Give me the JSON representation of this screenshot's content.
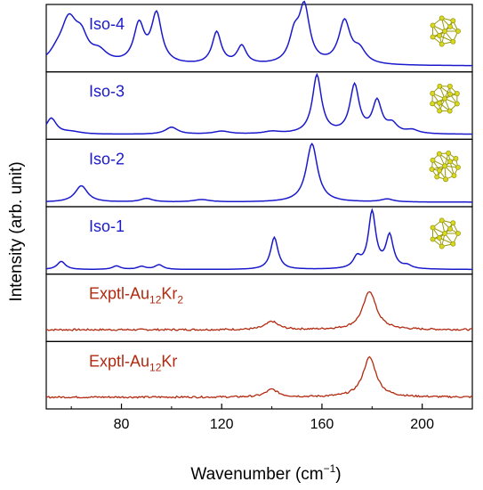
{
  "chart_data": {
    "type": "line",
    "xlabel": "Wavenumber (cm−1)",
    "ylabel": "Intensity (arb. unit)",
    "xlim": [
      50,
      220
    ],
    "xticks": [
      80,
      120,
      160,
      200
    ],
    "xtick_labels": [
      "80",
      "120",
      "160",
      "200"
    ],
    "grid": false,
    "legend": "none",
    "colors": {
      "calc": "#1a1acc",
      "exp": "#b22a10"
    },
    "panels": [
      {
        "label": "Iso-4",
        "kind": "calc",
        "thumb": "iso4-cluster-icon",
        "baseline": 0.04,
        "ymax": 1.0,
        "peaks": [
          [
            54,
            0.1,
            3
          ],
          [
            59,
            0.74,
            4
          ],
          [
            64,
            0.35,
            3
          ],
          [
            71,
            0.18,
            4
          ],
          [
            87,
            0.65,
            2.5
          ],
          [
            94,
            0.84,
            2.5
          ],
          [
            118,
            0.55,
            2.2
          ],
          [
            128,
            0.31,
            2.2
          ],
          [
            149,
            0.45,
            2.5
          ],
          [
            153,
            0.94,
            2.5
          ],
          [
            169,
            0.73,
            2.8
          ],
          [
            175,
            0.22,
            3
          ]
        ]
      },
      {
        "label": "Iso-3",
        "kind": "calc",
        "thumb": "iso3-cluster-icon",
        "baseline": 0.02,
        "ymax": 1.0,
        "peaks": [
          [
            52,
            0.27,
            2.5
          ],
          [
            60,
            0.04,
            5
          ],
          [
            100,
            0.12,
            3
          ],
          [
            120,
            0.05,
            4
          ],
          [
            140,
            0.04,
            4
          ],
          [
            158,
            1.0,
            2.2
          ],
          [
            173,
            0.82,
            2.2
          ],
          [
            182,
            0.54,
            2.2
          ],
          [
            188,
            0.15,
            2.5
          ],
          [
            196,
            0.06,
            3
          ]
        ]
      },
      {
        "label": "Iso-2",
        "kind": "calc",
        "thumb": "iso2-cluster-icon",
        "baseline": 0.015,
        "ymax": 1.0,
        "peaks": [
          [
            64,
            0.28,
            3
          ],
          [
            90,
            0.06,
            3
          ],
          [
            112,
            0.04,
            4
          ],
          [
            156,
            1.0,
            2.7
          ],
          [
            186,
            0.05,
            3
          ]
        ]
      },
      {
        "label": "Iso-1",
        "kind": "calc",
        "thumb": "iso1-cluster-icon",
        "baseline": 0.015,
        "ymax": 1.0,
        "peaks": [
          [
            56,
            0.14,
            2
          ],
          [
            78,
            0.06,
            2
          ],
          [
            88,
            0.05,
            2
          ],
          [
            95,
            0.08,
            2
          ],
          [
            141,
            0.55,
            1.8
          ],
          [
            174,
            0.18,
            1.8
          ],
          [
            180,
            0.97,
            1.8
          ],
          [
            187,
            0.56,
            1.8
          ],
          [
            194,
            0.05,
            2
          ]
        ]
      },
      {
        "label": "Exptl-Au",
        "sub1": "12",
        "mid": "Kr",
        "sub2": "2",
        "kind": "exp",
        "baseline": 0.14,
        "ymax": 1.0,
        "peaks": [
          [
            140,
            0.14,
            3
          ],
          [
            179,
            0.66,
            3.2
          ]
        ]
      },
      {
        "label": "Exptl-Au",
        "sub1": "12",
        "mid": "Kr",
        "sub2": "",
        "kind": "exp",
        "baseline": 0.14,
        "ymax": 1.0,
        "peaks": [
          [
            140,
            0.13,
            3
          ],
          [
            179,
            0.68,
            3.2
          ]
        ]
      }
    ]
  }
}
